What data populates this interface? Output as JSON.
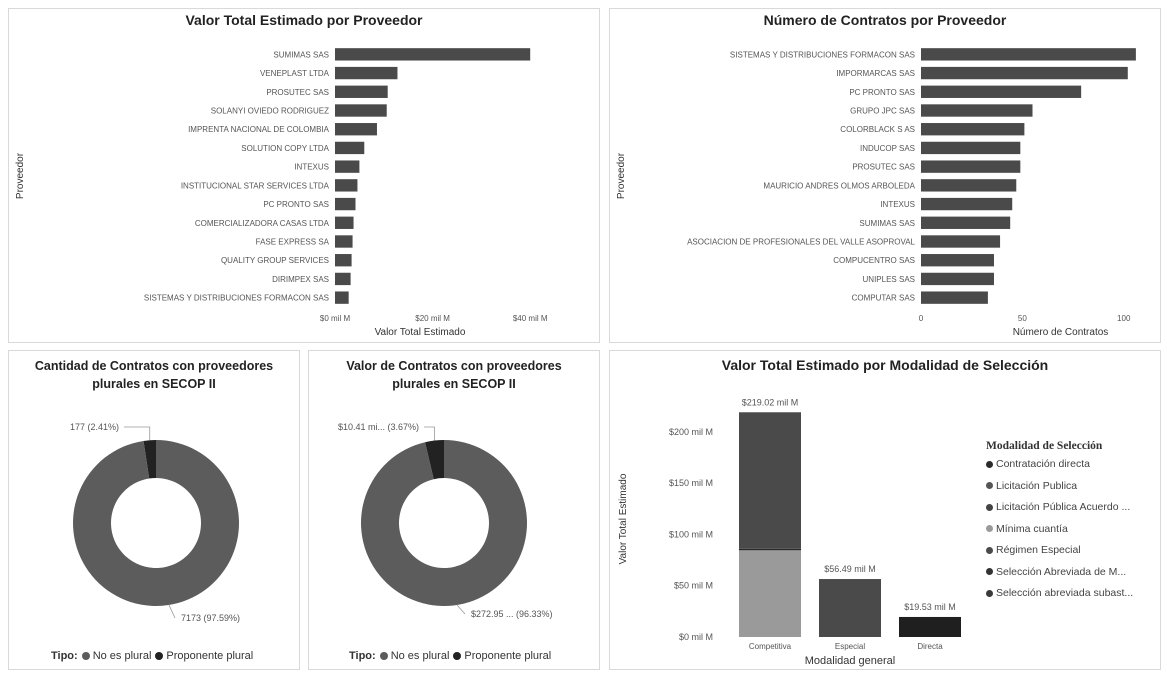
{
  "colors": {
    "bar": "#4a4a4a",
    "bar_dark": "#2b2b2b",
    "donut_main": "#5c5c5c",
    "donut_small": "#222222",
    "stack_light": "#9a9a9a",
    "stack_mid": "#1f1f1f",
    "grid": "#e6e6e6",
    "label": "#555555"
  },
  "chart_data": [
    {
      "id": "valor-proveedor",
      "type": "bar",
      "orientation": "horizontal",
      "title": "Valor Total Estimado por Proveedor",
      "xlabel": "Valor Total Estimado",
      "ylabel": "Proveedor",
      "xlim": [
        0,
        50
      ],
      "xticks": [
        0,
        20,
        40
      ],
      "xtick_labels": [
        "$0 mil M",
        "$20 mil M",
        "$40 mil M"
      ],
      "categories": [
        "SUMIMAS SAS",
        "VENEPLAST LTDA",
        "PROSUTEC SAS",
        "SOLANYI OVIEDO RODRIGUEZ",
        "IMPRENTA NACIONAL DE COLOMBIA",
        "SOLUTION COPY LTDA",
        "INTEXUS",
        "INSTITUCIONAL STAR SERVICES LTDA",
        "PC PRONTO SAS",
        "COMERCIALIZADORA CASAS LTDA",
        "FASE EXPRESS SA",
        "QUALITY GROUP SERVICES",
        "DIRIMPEX SAS",
        "SISTEMAS Y DISTRIBUCIONES FORMACON SAS"
      ],
      "values": [
        40.0,
        12.8,
        10.8,
        10.6,
        8.6,
        6.0,
        5.0,
        4.6,
        4.2,
        3.8,
        3.6,
        3.4,
        3.2,
        2.8
      ]
    },
    {
      "id": "numero-proveedor",
      "type": "bar",
      "orientation": "horizontal",
      "title": "Número de Contratos por Proveedor",
      "xlabel": "Número de Contratos",
      "ylabel": "Proveedor",
      "xlim": [
        0,
        110
      ],
      "xticks": [
        0,
        50,
        100
      ],
      "xtick_labels": [
        "0",
        "50",
        "100"
      ],
      "categories": [
        "SISTEMAS Y DISTRIBUCIONES FORMACON SAS",
        "IMPORMARCAS SAS",
        "PC PRONTO SAS",
        "GRUPO JPC SAS",
        "COLORBLACK S AS",
        "INDUCOP SAS",
        "PROSUTEC SAS",
        "MAURICIO ANDRES OLMOS ARBOLEDA",
        "INTEXUS",
        "SUMIMAS SAS",
        "ASOCIACION DE PROFESIONALES DEL VALLE ASOPROVAL",
        "COMPUCENTRO SAS",
        "UNIPLES SAS",
        "COMPUTAR SAS"
      ],
      "values": [
        106,
        102,
        79,
        55,
        51,
        49,
        49,
        47,
        45,
        44,
        39,
        36,
        36,
        33
      ]
    },
    {
      "id": "cantidad-plurales",
      "type": "pie",
      "donut": true,
      "title": "Cantidad de Contratos con proveedores plurales en SECOP II",
      "legend_title": "Tipo:",
      "legend": [
        "No es plural",
        "Proponente plural"
      ],
      "values": [
        7173,
        177
      ],
      "labels": [
        "7173 (97.59%)",
        "177 (2.41%)"
      ]
    },
    {
      "id": "valor-plurales",
      "type": "pie",
      "donut": true,
      "title": "Valor de Contratos con proveedores plurales en SECOP II",
      "legend_title": "Tipo:",
      "legend": [
        "No es plural",
        "Proponente plural"
      ],
      "values": [
        96.33,
        3.67
      ],
      "labels": [
        "$272.95 ... (96.33%)",
        "$10.41 mi... (3.67%)"
      ]
    },
    {
      "id": "valor-modalidad",
      "type": "bar",
      "stacked": true,
      "title": "Valor Total Estimado por Modalidad de Selección",
      "xlabel": "Modalidad general",
      "ylabel": "Valor Total Estimado",
      "ylim": [
        0,
        230
      ],
      "yticks": [
        0,
        50,
        100,
        150,
        200
      ],
      "ytick_labels": [
        "$0 mil M",
        "$50 mil M",
        "$100 mil M",
        "$150 mil M",
        "$200 mil M"
      ],
      "categories": [
        "Competitiva",
        "Especial",
        "Directa"
      ],
      "totals": [
        "$219.02 mil M",
        "$56.49 mil M",
        "$19.53 mil M"
      ],
      "series": [
        {
          "name": "Contratación directa",
          "values": [
            0,
            0,
            19.53
          ]
        },
        {
          "name": "Licitación Publica",
          "values": [
            133.0,
            0,
            0
          ]
        },
        {
          "name": "Licitación Pública Acuerdo ...",
          "values": [
            1.5,
            0,
            0
          ]
        },
        {
          "name": "Mínima cuantía",
          "values": [
            84.52,
            0,
            0
          ]
        },
        {
          "name": "Régimen Especial",
          "values": [
            0,
            56.49,
            0
          ]
        },
        {
          "name": "Selección Abreviada de M...",
          "values": [
            0,
            0,
            0
          ]
        },
        {
          "name": "Selección abreviada subast...",
          "values": [
            0,
            0,
            0
          ]
        }
      ],
      "legend_title": "Modalidad de Selección",
      "legend": [
        "Contratación directa",
        "Licitación Publica",
        "Licitación Pública Acuerdo ...",
        "Mínima cuantía",
        "Régimen Especial",
        "Selección Abreviada de M...",
        "Selección abreviada subast..."
      ]
    }
  ]
}
